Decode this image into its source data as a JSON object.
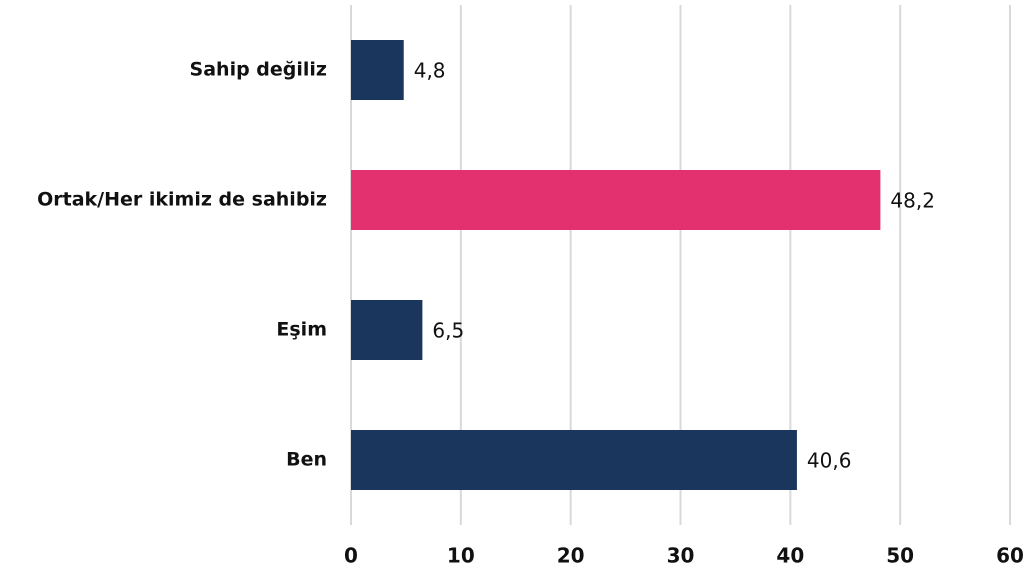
{
  "chart_data": {
    "type": "bar",
    "orientation": "horizontal",
    "categories": [
      "Sahip değiliz",
      "Ortak/Her ikimiz de sahibiz",
      "Eşim",
      "Ben"
    ],
    "values": [
      4.8,
      48.2,
      6.5,
      40.6
    ],
    "value_labels": [
      "4,8",
      "48,2",
      "6,5",
      "40,6"
    ],
    "colors": [
      "#1b365d",
      "#e3306f",
      "#1b365d",
      "#1b365d"
    ],
    "xlim": [
      0,
      60
    ],
    "xticks": [
      0,
      10,
      20,
      30,
      40,
      50,
      60
    ],
    "grid": true
  }
}
